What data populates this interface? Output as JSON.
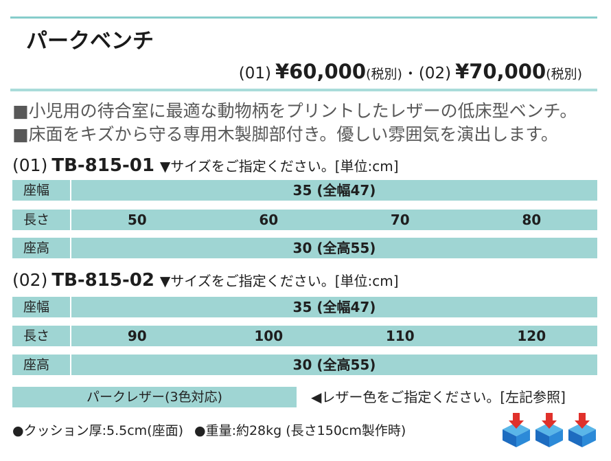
{
  "colors": {
    "accent_line": "#86cdcb",
    "cell_fill": "#9fd5d3",
    "text": "#222222",
    "muted_text": "#585858",
    "arrow_red": "#e0312b",
    "cube_blue": "#1f78d1"
  },
  "title": "パークベンチ",
  "price": {
    "p1_code": "(01)",
    "p1_amount": "¥60,000",
    "p1_tax": "(税別)",
    "separator": "・",
    "p2_code": "(02)",
    "p2_amount": "¥70,000",
    "p2_tax": "(税別)"
  },
  "description": [
    "■小児用の待合室に最適な動物柄をプリントしたレザーの低床型ベンチ。",
    "■床面をキズから守る専用木製脚部付き。優しい雰囲気を演出します。"
  ],
  "models": [
    {
      "code": "(01)",
      "model": "TB-815-01",
      "note": "▼サイズをご指定ください。[単位:cm]",
      "rows": [
        {
          "label": "座幅",
          "values": [
            "35 (全幅47)"
          ]
        },
        {
          "label": "長さ",
          "values": [
            "50",
            "60",
            "70",
            "80"
          ]
        },
        {
          "label": "座高",
          "values": [
            "30 (全高55)"
          ]
        }
      ]
    },
    {
      "code": "(02)",
      "model": "TB-815-02",
      "note": "▼サイズをご指定ください。[単位:cm]",
      "rows": [
        {
          "label": "座幅",
          "values": [
            "35 (全幅47)"
          ]
        },
        {
          "label": "長さ",
          "values": [
            "90",
            "100",
            "110",
            "120"
          ]
        },
        {
          "label": "座高",
          "values": [
            "30 (全高55)"
          ]
        }
      ]
    }
  ],
  "leather": {
    "label": "パークレザー(3色対応)",
    "note": "◀レザー色をご指定ください。[左記参照]"
  },
  "specs": [
    "●クッション厚:5.5cm(座面)",
    "●重量:約28kg (長さ150cm製作時)"
  ],
  "icons": [
    "cube-down-arrow-icon",
    "cube-down-arrow-icon",
    "cube-down-arrow-icon"
  ]
}
